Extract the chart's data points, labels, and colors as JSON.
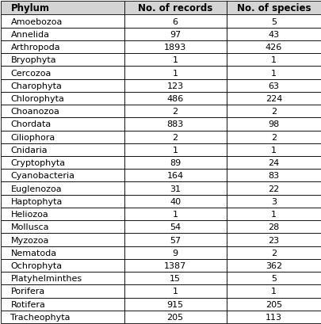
{
  "columns": [
    "Phylum",
    "No. of records",
    "No. of species"
  ],
  "rows": [
    [
      "Amoebozoa",
      "6",
      "5"
    ],
    [
      "Annelida",
      "97",
      "43"
    ],
    [
      "Arthropoda",
      "1893",
      "426"
    ],
    [
      "Bryophyta",
      "1",
      "1"
    ],
    [
      "Cercozoa",
      "1",
      "1"
    ],
    [
      "Charophyta",
      "123",
      "63"
    ],
    [
      "Chlorophyta",
      "486",
      "224"
    ],
    [
      "Choanozoa",
      "2",
      "2"
    ],
    [
      "Chordata",
      "883",
      "98"
    ],
    [
      "Ciliophora",
      "2",
      "2"
    ],
    [
      "Cnidaria",
      "1",
      "1"
    ],
    [
      "Cryptophyta",
      "89",
      "24"
    ],
    [
      "Cyanobacteria",
      "164",
      "83"
    ],
    [
      "Euglenozoa",
      "31",
      "22"
    ],
    [
      "Haptophyta",
      "40",
      "3"
    ],
    [
      "Heliozoa",
      "1",
      "1"
    ],
    [
      "Mollusca",
      "54",
      "28"
    ],
    [
      "Myzozoa",
      "57",
      "23"
    ],
    [
      "Nematoda",
      "9",
      "2"
    ],
    [
      "Ochrophyta",
      "1387",
      "362"
    ],
    [
      "Platyhelminthes",
      "15",
      "5"
    ],
    [
      "Porifera",
      "1",
      "1"
    ],
    [
      "Rotifera",
      "915",
      "205"
    ],
    [
      "Tracheophyta",
      "205",
      "113"
    ]
  ],
  "header_bg": "#d4d4d4",
  "row_bg": "#ffffff",
  "border_color": "#000000",
  "text_color": "#000000",
  "header_fontsize": 8.5,
  "row_fontsize": 8.0,
  "fig_width": 4.06,
  "fig_height": 4.1,
  "dpi": 100
}
